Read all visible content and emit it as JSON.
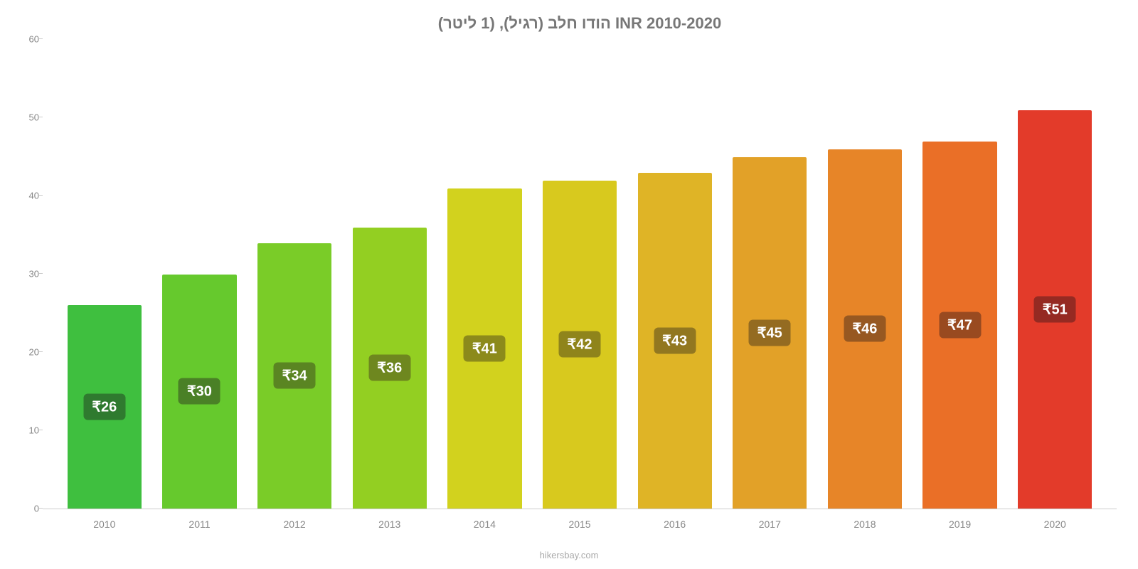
{
  "chart": {
    "type": "bar",
    "title": "הודו חלב (רגיל), (1 ליטר) INR 2010-2020",
    "title_color": "#777777",
    "title_fontsize": 22,
    "background_color": "#ffffff",
    "ylim": [
      0,
      60
    ],
    "ytick_step": 10,
    "yticks": [
      0,
      10,
      20,
      30,
      40,
      50,
      60
    ],
    "axis_color": "#cccccc",
    "tick_label_color": "#888888",
    "tick_fontsize": 13,
    "categories": [
      "2010",
      "2011",
      "2012",
      "2013",
      "2014",
      "2015",
      "2016",
      "2017",
      "2018",
      "2019",
      "2020"
    ],
    "values": [
      26,
      30,
      34,
      36,
      41,
      42,
      43,
      45,
      46,
      47,
      51
    ],
    "display_values": [
      "₹26",
      "₹30",
      "₹34",
      "₹36",
      "₹41",
      "₹42",
      "₹43",
      "₹45",
      "₹46",
      "₹47",
      "₹51"
    ],
    "bar_colors": [
      "#3fbf3f",
      "#66c92d",
      "#7acc28",
      "#93cf22",
      "#d2d21e",
      "#d8c91e",
      "#dfb426",
      "#e2a128",
      "#e78528",
      "#ea6f27",
      "#e33b2a"
    ],
    "bar_label_bg_colors": [
      "#2f7a2f",
      "#4a8026",
      "#5a8522",
      "#6e871f",
      "#8c8a1b",
      "#8f841b",
      "#927720",
      "#946b21",
      "#975821",
      "#994a20",
      "#952a22"
    ],
    "bar_label_color": "#ffffff",
    "bar_label_fontsize": 20,
    "bar_width_ratio": 0.78,
    "attribution": "hikersbay.com",
    "attribution_color": "#aaaaaa"
  }
}
